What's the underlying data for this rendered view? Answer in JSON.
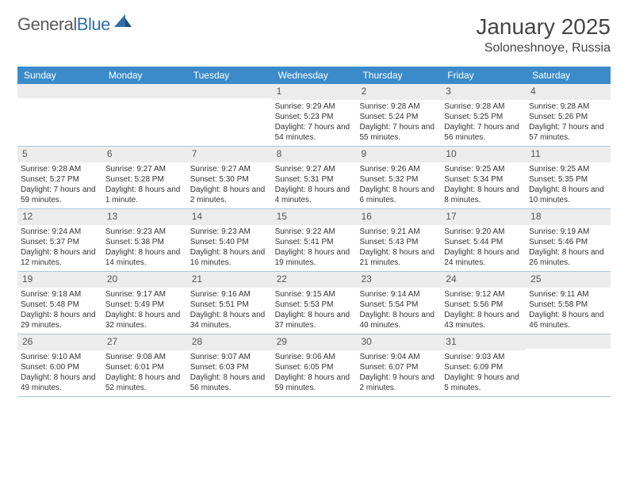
{
  "logo": {
    "word1": "General",
    "word2": "Blue"
  },
  "title": "January 2025",
  "location": "Soloneshnoye, Russia",
  "weekdays": [
    "Sunday",
    "Monday",
    "Tuesday",
    "Wednesday",
    "Thursday",
    "Friday",
    "Saturday"
  ],
  "colors": {
    "header_bg": "#3b8bca",
    "header_text": "#ffffff",
    "daynum_bg": "#ececec",
    "border": "#a8c8e0",
    "body_text": "#333333",
    "logo_gray": "#5a5a5a",
    "logo_blue": "#2f6fa8"
  },
  "weeks": [
    [
      {
        "day": "",
        "sunrise": "",
        "sunset": "",
        "daylight": ""
      },
      {
        "day": "",
        "sunrise": "",
        "sunset": "",
        "daylight": ""
      },
      {
        "day": "",
        "sunrise": "",
        "sunset": "",
        "daylight": ""
      },
      {
        "day": "1",
        "sunrise": "Sunrise: 9:29 AM",
        "sunset": "Sunset: 5:23 PM",
        "daylight": "Daylight: 7 hours and 54 minutes."
      },
      {
        "day": "2",
        "sunrise": "Sunrise: 9:28 AM",
        "sunset": "Sunset: 5:24 PM",
        "daylight": "Daylight: 7 hours and 55 minutes."
      },
      {
        "day": "3",
        "sunrise": "Sunrise: 9:28 AM",
        "sunset": "Sunset: 5:25 PM",
        "daylight": "Daylight: 7 hours and 56 minutes."
      },
      {
        "day": "4",
        "sunrise": "Sunrise: 9:28 AM",
        "sunset": "Sunset: 5:26 PM",
        "daylight": "Daylight: 7 hours and 57 minutes."
      }
    ],
    [
      {
        "day": "5",
        "sunrise": "Sunrise: 9:28 AM",
        "sunset": "Sunset: 5:27 PM",
        "daylight": "Daylight: 7 hours and 59 minutes."
      },
      {
        "day": "6",
        "sunrise": "Sunrise: 9:27 AM",
        "sunset": "Sunset: 5:28 PM",
        "daylight": "Daylight: 8 hours and 1 minute."
      },
      {
        "day": "7",
        "sunrise": "Sunrise: 9:27 AM",
        "sunset": "Sunset: 5:30 PM",
        "daylight": "Daylight: 8 hours and 2 minutes."
      },
      {
        "day": "8",
        "sunrise": "Sunrise: 9:27 AM",
        "sunset": "Sunset: 5:31 PM",
        "daylight": "Daylight: 8 hours and 4 minutes."
      },
      {
        "day": "9",
        "sunrise": "Sunrise: 9:26 AM",
        "sunset": "Sunset: 5:32 PM",
        "daylight": "Daylight: 8 hours and 6 minutes."
      },
      {
        "day": "10",
        "sunrise": "Sunrise: 9:25 AM",
        "sunset": "Sunset: 5:34 PM",
        "daylight": "Daylight: 8 hours and 8 minutes."
      },
      {
        "day": "11",
        "sunrise": "Sunrise: 9:25 AM",
        "sunset": "Sunset: 5:35 PM",
        "daylight": "Daylight: 8 hours and 10 minutes."
      }
    ],
    [
      {
        "day": "12",
        "sunrise": "Sunrise: 9:24 AM",
        "sunset": "Sunset: 5:37 PM",
        "daylight": "Daylight: 8 hours and 12 minutes."
      },
      {
        "day": "13",
        "sunrise": "Sunrise: 9:23 AM",
        "sunset": "Sunset: 5:38 PM",
        "daylight": "Daylight: 8 hours and 14 minutes."
      },
      {
        "day": "14",
        "sunrise": "Sunrise: 9:23 AM",
        "sunset": "Sunset: 5:40 PM",
        "daylight": "Daylight: 8 hours and 16 minutes."
      },
      {
        "day": "15",
        "sunrise": "Sunrise: 9:22 AM",
        "sunset": "Sunset: 5:41 PM",
        "daylight": "Daylight: 8 hours and 19 minutes."
      },
      {
        "day": "16",
        "sunrise": "Sunrise: 9:21 AM",
        "sunset": "Sunset: 5:43 PM",
        "daylight": "Daylight: 8 hours and 21 minutes."
      },
      {
        "day": "17",
        "sunrise": "Sunrise: 9:20 AM",
        "sunset": "Sunset: 5:44 PM",
        "daylight": "Daylight: 8 hours and 24 minutes."
      },
      {
        "day": "18",
        "sunrise": "Sunrise: 9:19 AM",
        "sunset": "Sunset: 5:46 PM",
        "daylight": "Daylight: 8 hours and 26 minutes."
      }
    ],
    [
      {
        "day": "19",
        "sunrise": "Sunrise: 9:18 AM",
        "sunset": "Sunset: 5:48 PM",
        "daylight": "Daylight: 8 hours and 29 minutes."
      },
      {
        "day": "20",
        "sunrise": "Sunrise: 9:17 AM",
        "sunset": "Sunset: 5:49 PM",
        "daylight": "Daylight: 8 hours and 32 minutes."
      },
      {
        "day": "21",
        "sunrise": "Sunrise: 9:16 AM",
        "sunset": "Sunset: 5:51 PM",
        "daylight": "Daylight: 8 hours and 34 minutes."
      },
      {
        "day": "22",
        "sunrise": "Sunrise: 9:15 AM",
        "sunset": "Sunset: 5:53 PM",
        "daylight": "Daylight: 8 hours and 37 minutes."
      },
      {
        "day": "23",
        "sunrise": "Sunrise: 9:14 AM",
        "sunset": "Sunset: 5:54 PM",
        "daylight": "Daylight: 8 hours and 40 minutes."
      },
      {
        "day": "24",
        "sunrise": "Sunrise: 9:12 AM",
        "sunset": "Sunset: 5:56 PM",
        "daylight": "Daylight: 8 hours and 43 minutes."
      },
      {
        "day": "25",
        "sunrise": "Sunrise: 9:11 AM",
        "sunset": "Sunset: 5:58 PM",
        "daylight": "Daylight: 8 hours and 46 minutes."
      }
    ],
    [
      {
        "day": "26",
        "sunrise": "Sunrise: 9:10 AM",
        "sunset": "Sunset: 6:00 PM",
        "daylight": "Daylight: 8 hours and 49 minutes."
      },
      {
        "day": "27",
        "sunrise": "Sunrise: 9:08 AM",
        "sunset": "Sunset: 6:01 PM",
        "daylight": "Daylight: 8 hours and 52 minutes."
      },
      {
        "day": "28",
        "sunrise": "Sunrise: 9:07 AM",
        "sunset": "Sunset: 6:03 PM",
        "daylight": "Daylight: 8 hours and 56 minutes."
      },
      {
        "day": "29",
        "sunrise": "Sunrise: 9:06 AM",
        "sunset": "Sunset: 6:05 PM",
        "daylight": "Daylight: 8 hours and 59 minutes."
      },
      {
        "day": "30",
        "sunrise": "Sunrise: 9:04 AM",
        "sunset": "Sunset: 6:07 PM",
        "daylight": "Daylight: 9 hours and 2 minutes."
      },
      {
        "day": "31",
        "sunrise": "Sunrise: 9:03 AM",
        "sunset": "Sunset: 6:09 PM",
        "daylight": "Daylight: 9 hours and 5 minutes."
      },
      {
        "day": "",
        "sunrise": "",
        "sunset": "",
        "daylight": ""
      }
    ]
  ]
}
